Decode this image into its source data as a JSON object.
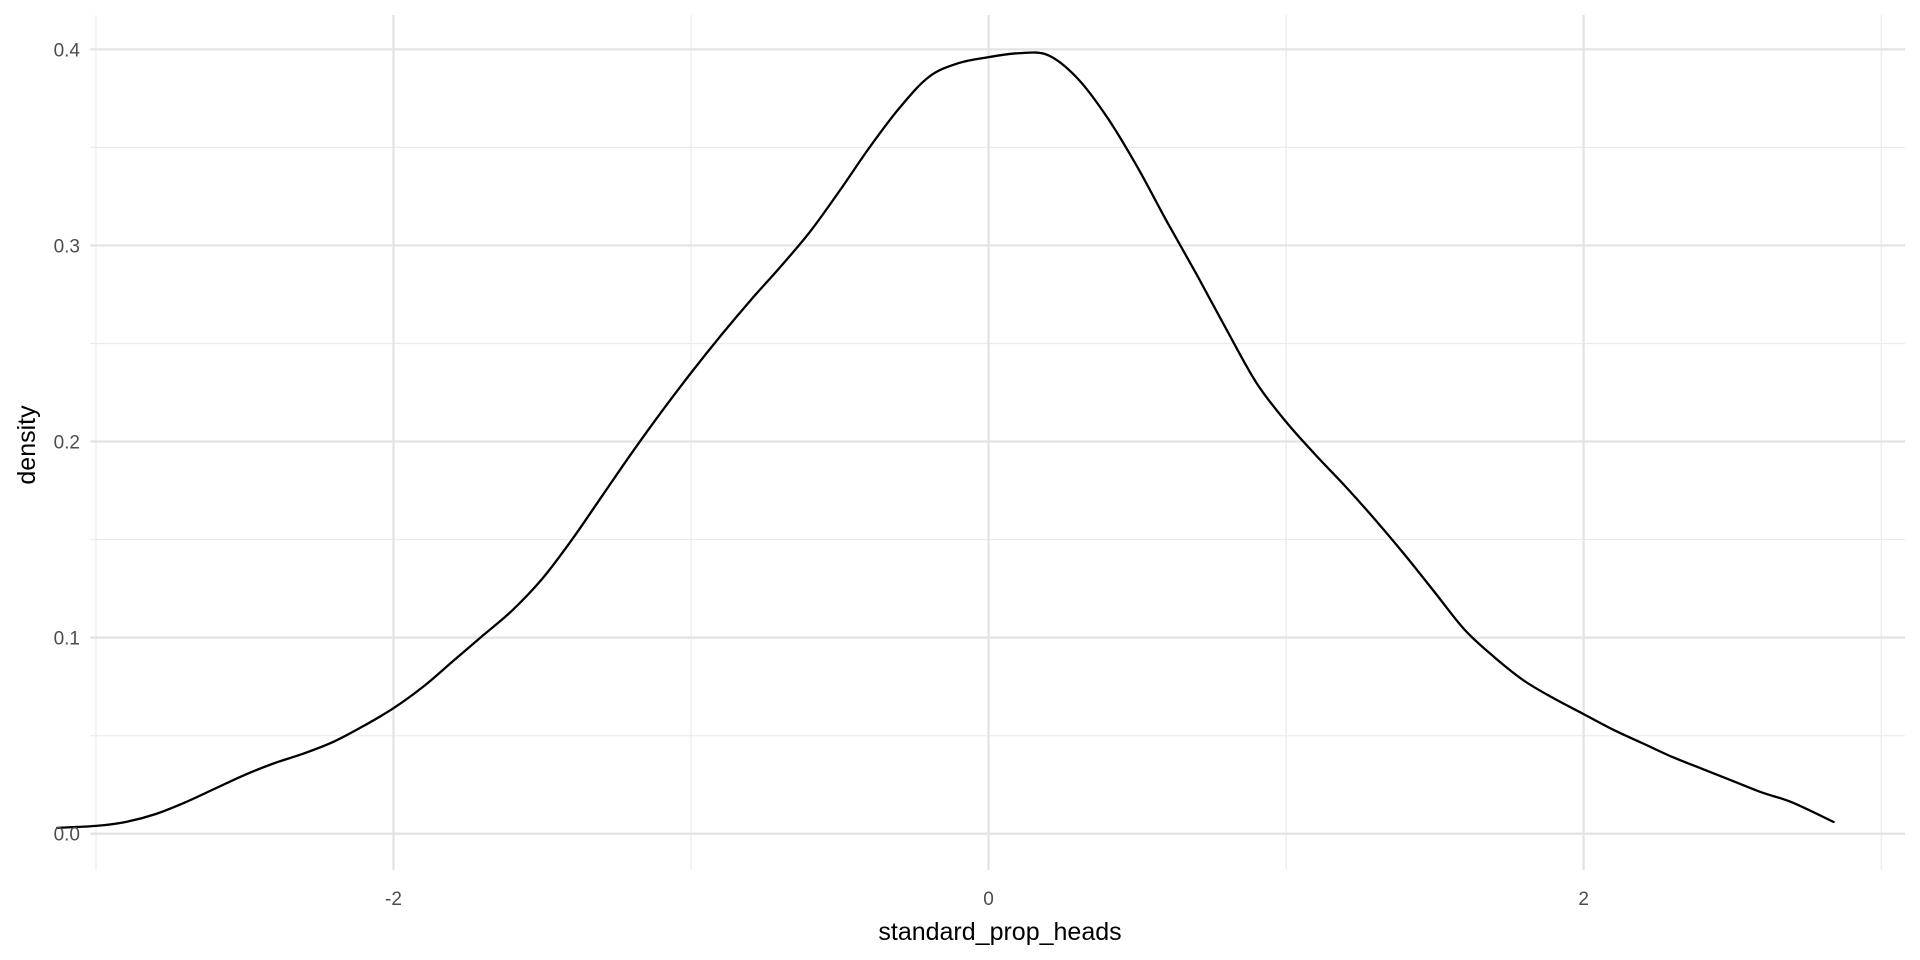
{
  "chart_data": {
    "type": "line",
    "title": "",
    "xlabel": "standard_prop_heads",
    "ylabel": "density",
    "xlim": [
      -3.02,
      3.08
    ],
    "ylim": [
      -0.0185,
      0.4175
    ],
    "x_ticks": [
      -2,
      0,
      2
    ],
    "x_tick_labels": [
      "-2",
      "0",
      "2"
    ],
    "x_minor_ticks": [
      -3,
      -1,
      1,
      3
    ],
    "y_ticks": [
      0.0,
      0.1,
      0.2,
      0.3,
      0.4
    ],
    "y_tick_labels": [
      "0.0",
      "0.1",
      "0.2",
      "0.3",
      "0.4"
    ],
    "y_minor_ticks": [
      0.05,
      0.15,
      0.25,
      0.35
    ],
    "grid": true,
    "legend": "none",
    "series": [
      {
        "color": "#000000",
        "x": [
          -3.13,
          -3.0,
          -2.9,
          -2.8,
          -2.7,
          -2.6,
          -2.5,
          -2.4,
          -2.3,
          -2.2,
          -2.1,
          -2.0,
          -1.9,
          -1.8,
          -1.7,
          -1.6,
          -1.5,
          -1.4,
          -1.3,
          -1.2,
          -1.1,
          -1.0,
          -0.9,
          -0.8,
          -0.7,
          -0.6,
          -0.5,
          -0.4,
          -0.3,
          -0.2,
          -0.1,
          0.0,
          0.1,
          0.2,
          0.3,
          0.4,
          0.5,
          0.6,
          0.7,
          0.8,
          0.9,
          1.0,
          1.1,
          1.2,
          1.3,
          1.4,
          1.5,
          1.6,
          1.7,
          1.8,
          1.9,
          2.0,
          2.1,
          2.2,
          2.3,
          2.4,
          2.5,
          2.6,
          2.7,
          2.84
        ],
        "y": [
          0.003,
          0.004,
          0.006,
          0.01,
          0.016,
          0.023,
          0.03,
          0.036,
          0.041,
          0.047,
          0.055,
          0.064,
          0.075,
          0.088,
          0.101,
          0.114,
          0.13,
          0.15,
          0.172,
          0.194,
          0.215,
          0.235,
          0.254,
          0.272,
          0.289,
          0.307,
          0.328,
          0.35,
          0.37,
          0.386,
          0.393,
          0.396,
          0.398,
          0.397,
          0.385,
          0.365,
          0.34,
          0.312,
          0.285,
          0.257,
          0.23,
          0.21,
          0.193,
          0.177,
          0.16,
          0.142,
          0.123,
          0.104,
          0.09,
          0.078,
          0.069,
          0.061,
          0.053,
          0.046,
          0.039,
          0.033,
          0.027,
          0.021,
          0.016,
          0.006
        ]
      }
    ]
  }
}
